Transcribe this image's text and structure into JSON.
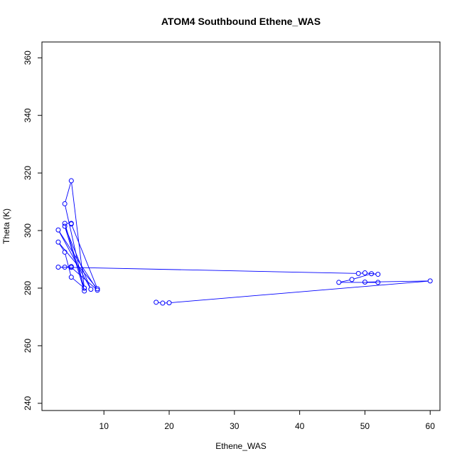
{
  "chart_data": {
    "type": "scatter",
    "title": "ATOM4 Southbound Ethene_WAS",
    "xlabel": "Ethene_WAS",
    "ylabel": "Theta (K)",
    "xlim": [
      0.5,
      61.5
    ],
    "ylim": [
      237.5,
      365.5
    ],
    "x_ticks": [
      10,
      20,
      30,
      40,
      50,
      60
    ],
    "y_ticks": [
      240,
      260,
      280,
      300,
      320,
      340,
      360
    ],
    "x_tick_labels": [
      "10",
      "20",
      "30",
      "40",
      "50",
      "60"
    ],
    "y_tick_labels": [
      "240",
      "260",
      "280",
      "300",
      "320",
      "340",
      "360"
    ],
    "grid": false,
    "legend": "none",
    "color": "#0000ff",
    "series": [
      {
        "markers": "open-circle",
        "line": "connected",
        "points": [
          {
            "x": 18,
            "y": 275.1
          },
          {
            "x": 19,
            "y": 274.8
          },
          {
            "x": 20,
            "y": 274.9
          },
          {
            "x": 60,
            "y": 282.5
          },
          {
            "x": 50,
            "y": 282.1
          },
          {
            "x": 52,
            "y": 282.0
          },
          {
            "x": 46,
            "y": 282.0
          },
          {
            "x": 48,
            "y": 283.0
          },
          {
            "x": 51,
            "y": 285.0
          },
          {
            "x": 52,
            "y": 284.8
          },
          {
            "x": 50,
            "y": 285.3
          },
          {
            "x": 49,
            "y": 285.1
          },
          {
            "x": 3,
            "y": 287.3
          },
          {
            "x": 4,
            "y": 287.3
          },
          {
            "x": 5,
            "y": 287.5
          },
          {
            "x": 5,
            "y": 287.2
          },
          {
            "x": 9,
            "y": 279.3
          },
          {
            "x": 3,
            "y": 300.2
          },
          {
            "x": 8,
            "y": 279.6
          },
          {
            "x": 4,
            "y": 301.5
          },
          {
            "x": 7,
            "y": 279.0
          },
          {
            "x": 4,
            "y": 309.3
          },
          {
            "x": 5,
            "y": 317.3
          },
          {
            "x": 7,
            "y": 280.0
          },
          {
            "x": 4,
            "y": 302.5
          },
          {
            "x": 5,
            "y": 302.5
          },
          {
            "x": 5,
            "y": 302.3
          },
          {
            "x": 9,
            "y": 279.8
          },
          {
            "x": 3,
            "y": 296.0
          },
          {
            "x": 4,
            "y": 292.5
          },
          {
            "x": 5,
            "y": 283.8
          },
          {
            "x": 7,
            "y": 280.0
          }
        ]
      }
    ]
  }
}
